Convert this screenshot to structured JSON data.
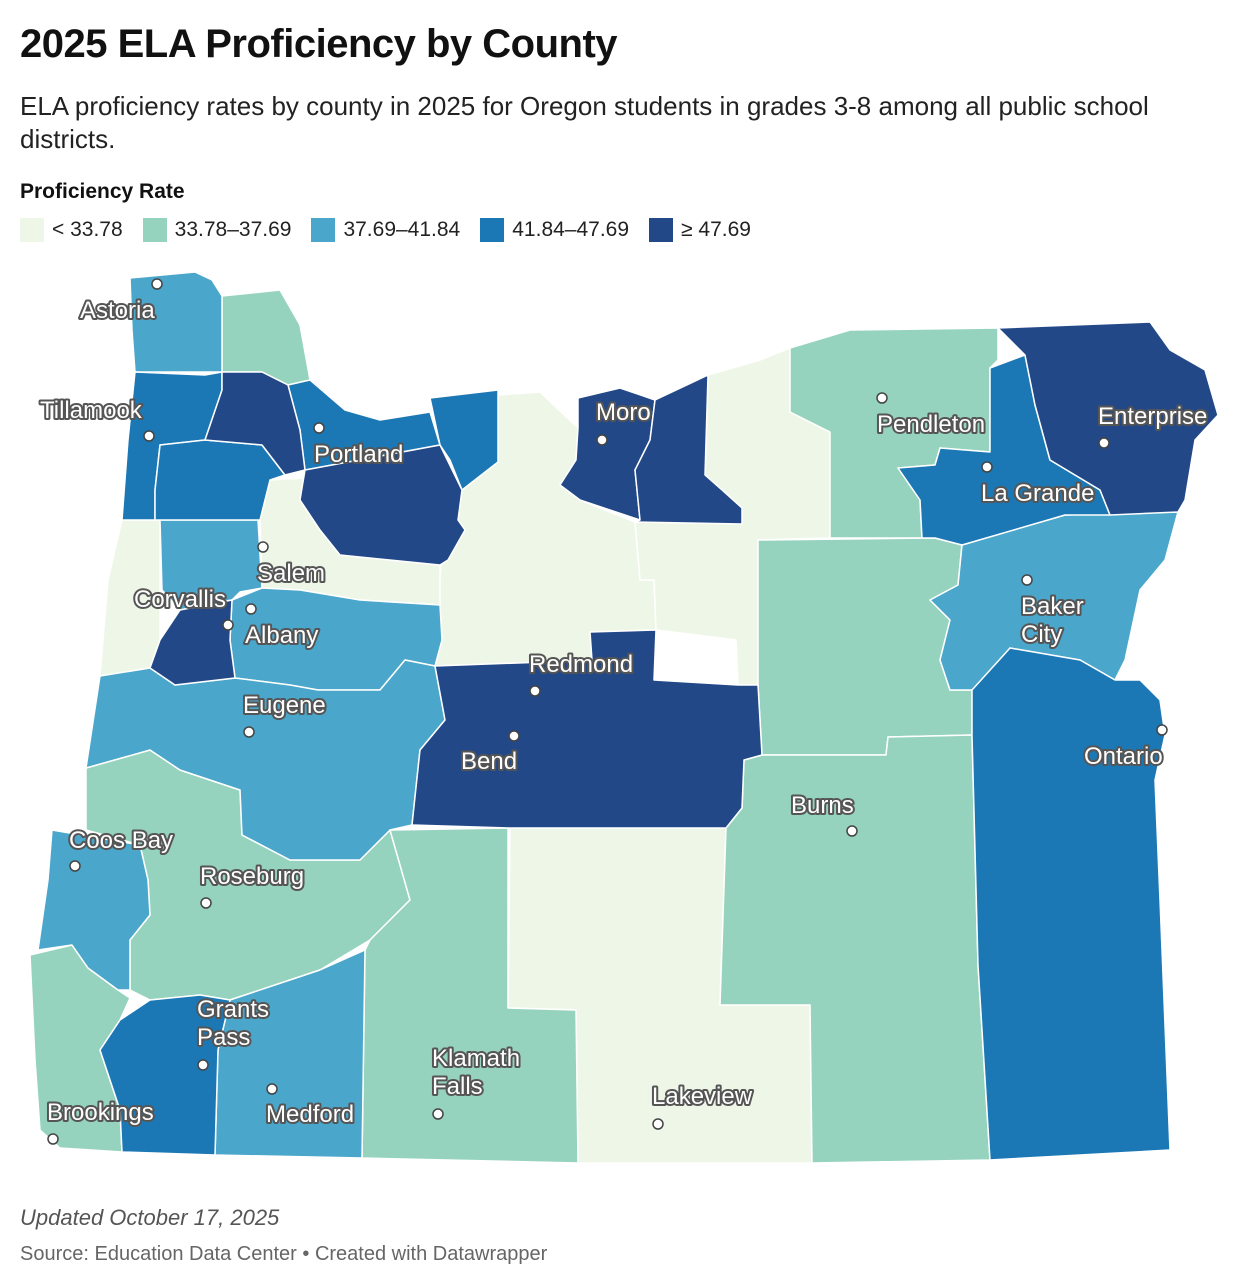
{
  "title": "2025 ELA Proficiency by County",
  "subtitle": "ELA proficiency rates by county in 2025 for Oregon students in grades 3-8 among all public school districts.",
  "legend": {
    "title": "Proficiency Rate",
    "bins": [
      {
        "label": "< 33.78",
        "color": "#eef7e7"
      },
      {
        "label": "33.78–37.69",
        "color": "#96d3bf"
      },
      {
        "label": "37.69–41.84",
        "color": "#4aa6cb"
      },
      {
        "label": "41.84–47.69",
        "color": "#1c78b5"
      },
      {
        "label": "≥ 47.69",
        "color": "#234888"
      }
    ]
  },
  "cities": [
    {
      "name": "Astoria"
    },
    {
      "name": "Tillamook"
    },
    {
      "name": "Portland"
    },
    {
      "name": "Moro"
    },
    {
      "name": "Pendleton"
    },
    {
      "name": "Enterprise"
    },
    {
      "name": "La Grande"
    },
    {
      "name": "Salem"
    },
    {
      "name": "Corvallis"
    },
    {
      "name": "Albany"
    },
    {
      "name": "Baker City"
    },
    {
      "name": "Redmond"
    },
    {
      "name": "Eugene"
    },
    {
      "name": "Bend"
    },
    {
      "name": "Ontario"
    },
    {
      "name": "Burns"
    },
    {
      "name": "Coos Bay"
    },
    {
      "name": "Roseburg"
    },
    {
      "name": "Grants Pass"
    },
    {
      "name": "Klamath Falls"
    },
    {
      "name": "Lakeview"
    },
    {
      "name": "Brookings"
    },
    {
      "name": "Medford"
    }
  ],
  "footer": {
    "updated": "Updated October 17, 2025",
    "source": "Source: Education Data Center • Created with Datawrapper"
  }
}
